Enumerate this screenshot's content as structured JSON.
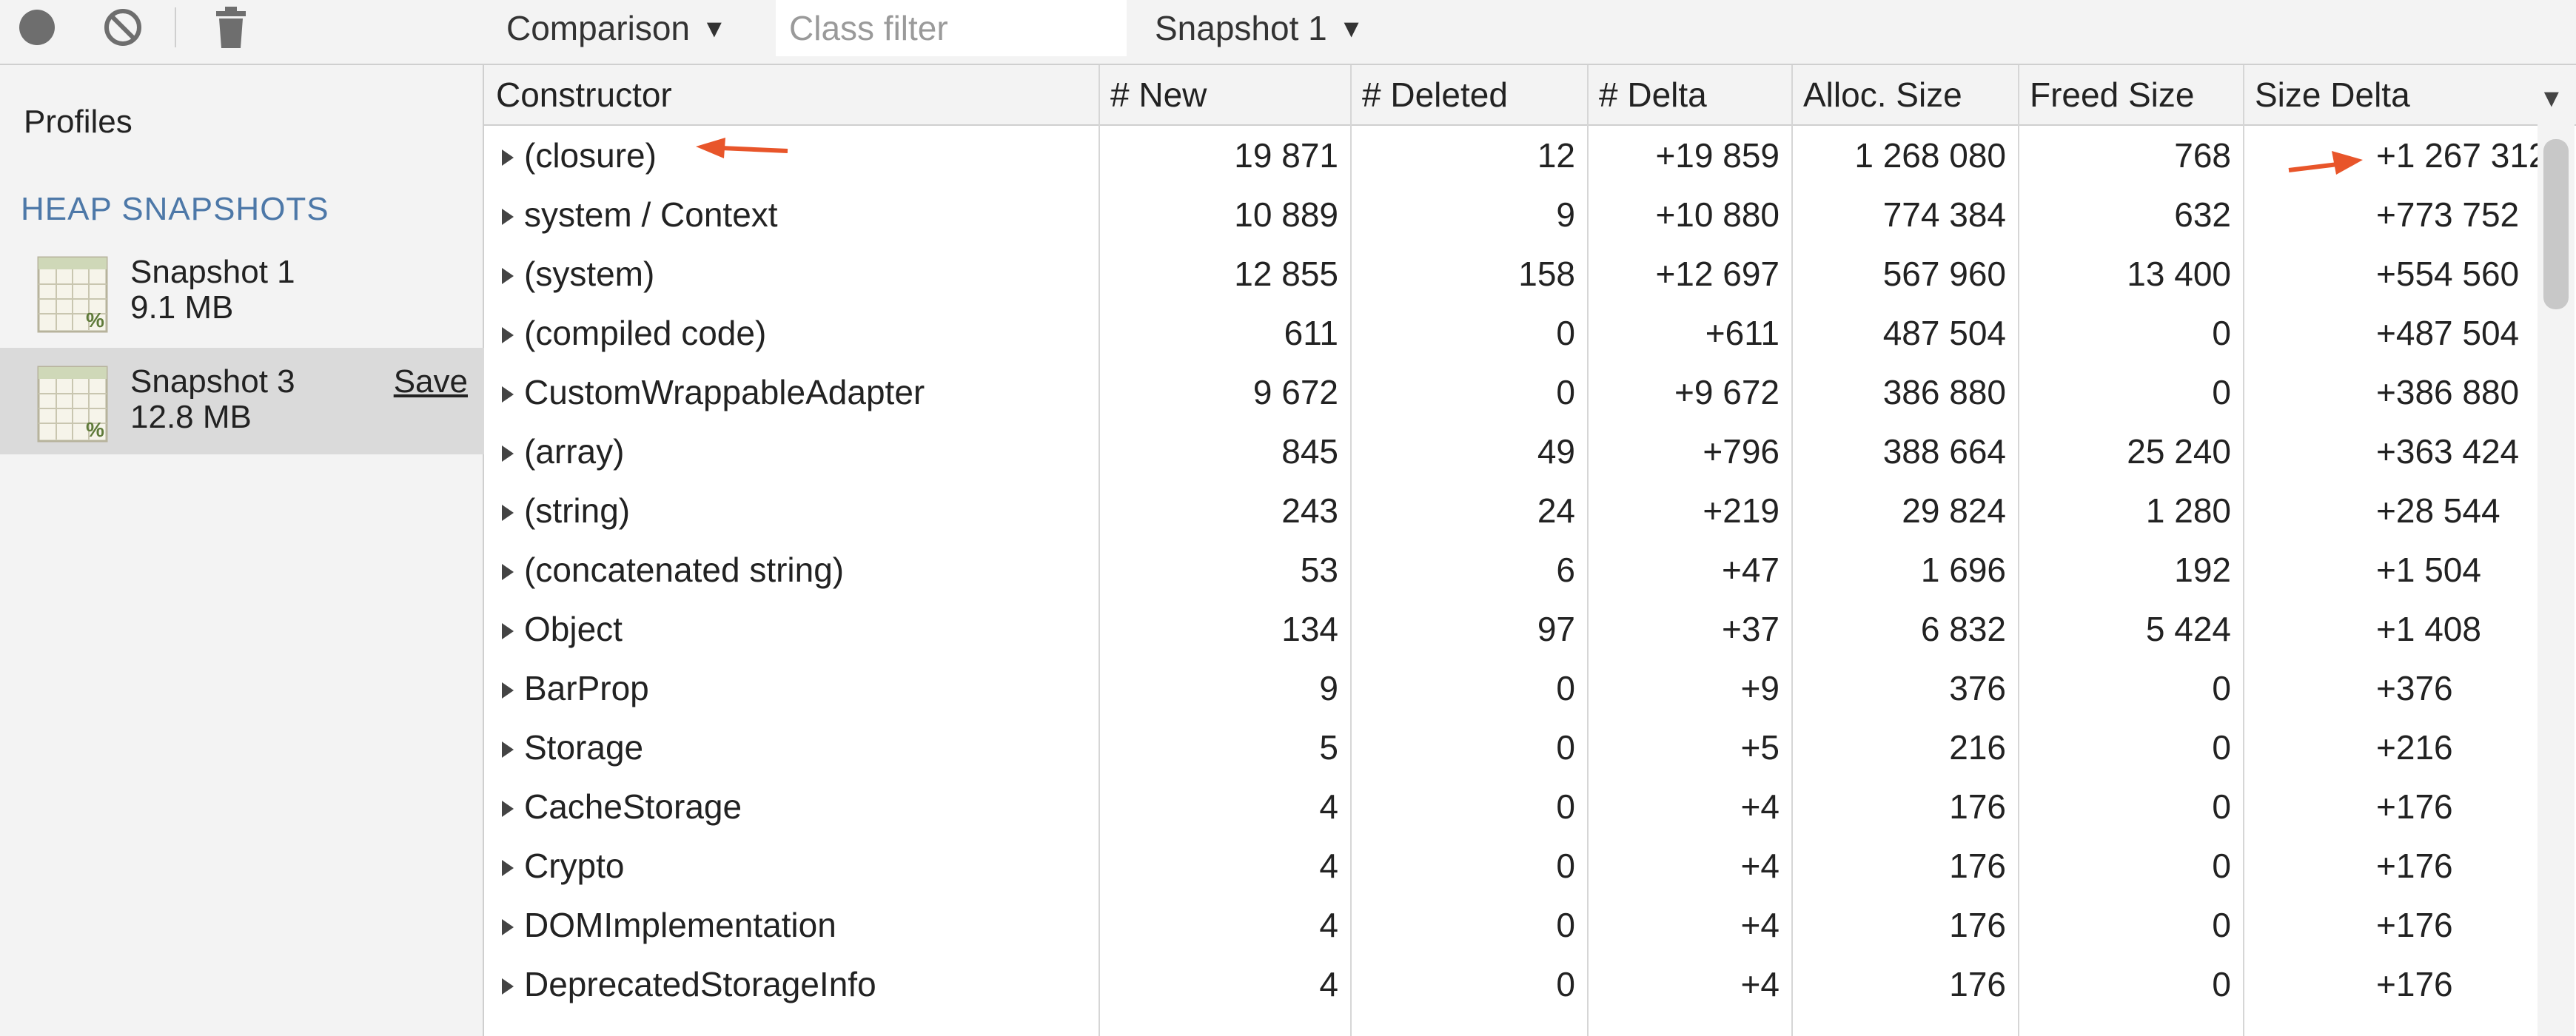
{
  "toolbar": {
    "record_icon": "record-icon",
    "clear_icon": "clear-icon",
    "trash_icon": "trash-icon",
    "view_mode": "Comparison",
    "class_filter_placeholder": "Class filter",
    "base_snapshot": "Snapshot 1"
  },
  "sidebar": {
    "profiles_label": "Profiles",
    "section_label": "HEAP SNAPSHOTS",
    "snapshots": [
      {
        "name": "Snapshot 1",
        "size": "9.1 MB",
        "selected": false
      },
      {
        "name": "Snapshot 3",
        "size": "12.8 MB",
        "selected": true,
        "action": "Save"
      }
    ]
  },
  "table": {
    "columns": [
      "Constructor",
      "# New",
      "# Deleted",
      "# Delta",
      "Alloc. Size",
      "Freed Size",
      "Size Delta"
    ],
    "sorted_column": "Size Delta",
    "rows": [
      {
        "name": "(closure)",
        "new": "19 871",
        "deleted": "12",
        "delta": "+19 859",
        "alloc": "1 268 080",
        "freed": "768",
        "size_delta": "+1 267 312"
      },
      {
        "name": "system / Context",
        "new": "10 889",
        "deleted": "9",
        "delta": "+10 880",
        "alloc": "774 384",
        "freed": "632",
        "size_delta": "+773 752"
      },
      {
        "name": "(system)",
        "new": "12 855",
        "deleted": "158",
        "delta": "+12 697",
        "alloc": "567 960",
        "freed": "13 400",
        "size_delta": "+554 560"
      },
      {
        "name": "(compiled code)",
        "new": "611",
        "deleted": "0",
        "delta": "+611",
        "alloc": "487 504",
        "freed": "0",
        "size_delta": "+487 504"
      },
      {
        "name": "CustomWrappableAdapter",
        "new": "9 672",
        "deleted": "0",
        "delta": "+9 672",
        "alloc": "386 880",
        "freed": "0",
        "size_delta": "+386 880"
      },
      {
        "name": "(array)",
        "new": "845",
        "deleted": "49",
        "delta": "+796",
        "alloc": "388 664",
        "freed": "25 240",
        "size_delta": "+363 424"
      },
      {
        "name": "(string)",
        "new": "243",
        "deleted": "24",
        "delta": "+219",
        "alloc": "29 824",
        "freed": "1 280",
        "size_delta": "+28 544"
      },
      {
        "name": "(concatenated string)",
        "new": "53",
        "deleted": "6",
        "delta": "+47",
        "alloc": "1 696",
        "freed": "192",
        "size_delta": "+1 504"
      },
      {
        "name": "Object",
        "new": "134",
        "deleted": "97",
        "delta": "+37",
        "alloc": "6 832",
        "freed": "5 424",
        "size_delta": "+1 408"
      },
      {
        "name": "BarProp",
        "new": "9",
        "deleted": "0",
        "delta": "+9",
        "alloc": "376",
        "freed": "0",
        "size_delta": "+376"
      },
      {
        "name": "Storage",
        "new": "5",
        "deleted": "0",
        "delta": "+5",
        "alloc": "216",
        "freed": "0",
        "size_delta": "+216"
      },
      {
        "name": "CacheStorage",
        "new": "4",
        "deleted": "0",
        "delta": "+4",
        "alloc": "176",
        "freed": "0",
        "size_delta": "+176"
      },
      {
        "name": "Crypto",
        "new": "4",
        "deleted": "0",
        "delta": "+4",
        "alloc": "176",
        "freed": "0",
        "size_delta": "+176"
      },
      {
        "name": "DOMImplementation",
        "new": "4",
        "deleted": "0",
        "delta": "+4",
        "alloc": "176",
        "freed": "0",
        "size_delta": "+176"
      },
      {
        "name": "DeprecatedStorageInfo",
        "new": "4",
        "deleted": "0",
        "delta": "+4",
        "alloc": "176",
        "freed": "0",
        "size_delta": "+176"
      }
    ]
  },
  "colors": {
    "section_label": "#4d78a8",
    "annotation_arrow": "#e8552a",
    "selected_row": "#dadada"
  }
}
